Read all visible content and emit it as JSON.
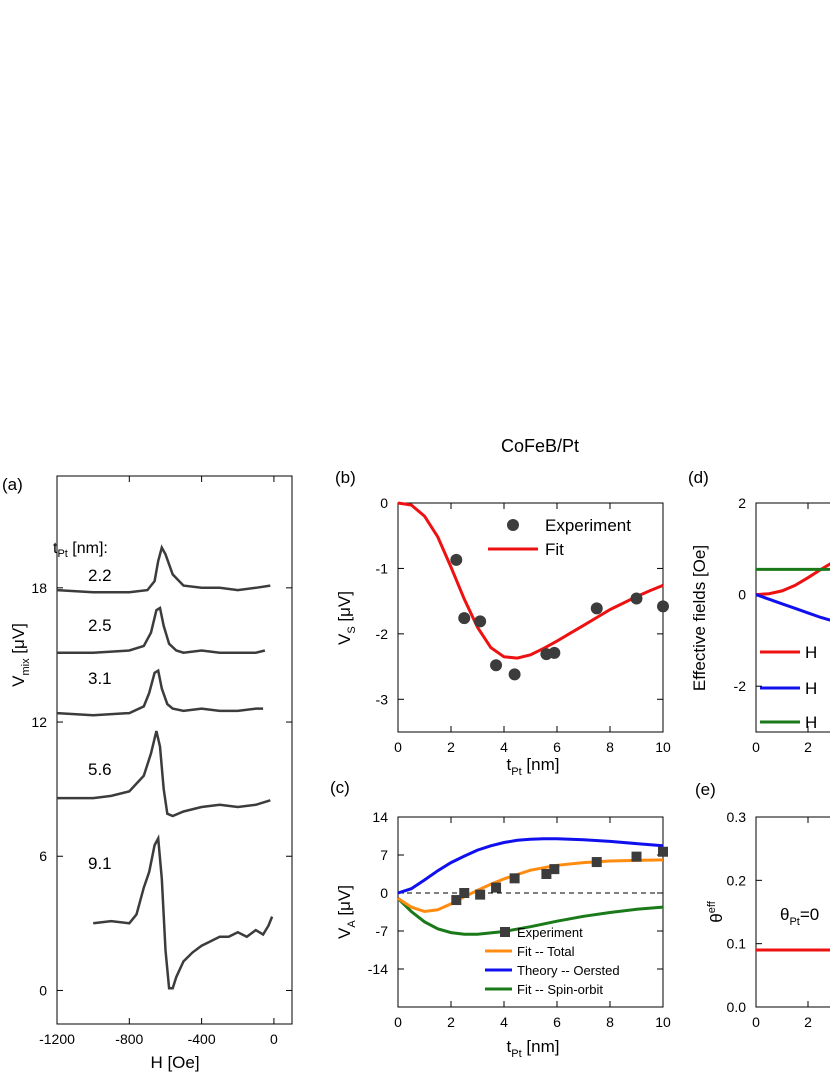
{
  "figure_title": "CoFeB/Pt",
  "colors": {
    "trace": "#3c3c3c",
    "fit_red": "#ee1111",
    "orange": "#ff8c10",
    "blue": "#1010ee",
    "green": "#1a7a1a",
    "marker": "#3c3c3c"
  },
  "panels": {
    "a": {
      "label": "(a)",
      "xlabel": "H [Oe]",
      "ylabel_main": "V",
      "ylabel_sub": "mix",
      "ylabel_unit": " [μV]",
      "legend_title_main": "t",
      "legend_title_sub": "Pt",
      "legend_title_rest": " [nm]:"
    },
    "b": {
      "label": "(b)",
      "xlabel_main": "t",
      "xlabel_sub": "Pt",
      "xlabel_unit": " [nm]",
      "ylabel_main": "V",
      "ylabel_sub": "S",
      "ylabel_unit": " [μV]",
      "legend": [
        "Experiment",
        "Fit"
      ]
    },
    "c": {
      "label": "(c)",
      "xlabel_main": "t",
      "xlabel_sub": "Pt",
      "xlabel_unit": " [nm]",
      "ylabel_main": "V",
      "ylabel_sub": "A",
      "ylabel_unit": " [μV]",
      "legend": [
        "Experiment",
        "Fit -- Total",
        "Theory -- Oersted",
        "Fit -- Spin-orbit"
      ]
    },
    "d": {
      "label": "(d)",
      "ylabel": "Effective fields [Oe]",
      "legend_visible": [
        "H",
        "H",
        "H"
      ]
    },
    "e": {
      "label": "(e)",
      "ylabel_main": "θ",
      "ylabel_sup": "eff",
      "annotation_main": "θ",
      "annotation_sub": "Pt",
      "annotation_rest": "=0"
    }
  },
  "chart_data": [
    {
      "id": "a",
      "type": "line",
      "title": "",
      "xlabel": "H [Oe]",
      "ylabel": "Vmix [μV]",
      "xlim": [
        -1200,
        100
      ],
      "ylim": [
        -1.5,
        23
      ],
      "xticks": [
        -1200,
        -800,
        -400,
        0
      ],
      "yticks": [
        0,
        6,
        12,
        18
      ],
      "series": [
        {
          "name": "2.2",
          "x": [
            -1200,
            -1000,
            -800,
            -700,
            -660,
            -640,
            -620,
            -600,
            -560,
            -500,
            -400,
            -300,
            -200,
            -100,
            -20
          ],
          "y": [
            17.9,
            17.8,
            17.8,
            17.9,
            18.3,
            19.2,
            19.8,
            19.5,
            18.6,
            18.1,
            18.0,
            18.0,
            17.9,
            18.0,
            18.1
          ]
        },
        {
          "name": "2.5",
          "x": [
            -1200,
            -1000,
            -800,
            -720,
            -680,
            -650,
            -630,
            -610,
            -580,
            -540,
            -500,
            -400,
            -300,
            -200,
            -100,
            -50
          ],
          "y": [
            15.1,
            15.1,
            15.2,
            15.4,
            16.0,
            17.0,
            17.1,
            16.3,
            15.5,
            15.2,
            15.1,
            15.2,
            15.1,
            15.1,
            15.1,
            15.2
          ]
        },
        {
          "name": "3.1",
          "x": [
            -1200,
            -1000,
            -800,
            -720,
            -690,
            -660,
            -640,
            -620,
            -590,
            -560,
            -500,
            -400,
            -300,
            -200,
            -100,
            -60
          ],
          "y": [
            12.4,
            12.3,
            12.4,
            12.7,
            13.3,
            14.2,
            14.3,
            13.5,
            12.8,
            12.6,
            12.5,
            12.6,
            12.5,
            12.5,
            12.6,
            12.6
          ]
        },
        {
          "name": "5.6",
          "x": [
            -1200,
            -1000,
            -900,
            -800,
            -720,
            -680,
            -650,
            -630,
            -610,
            -590,
            -560,
            -500,
            -400,
            -300,
            -200,
            -100,
            -20
          ],
          "y": [
            8.6,
            8.6,
            8.7,
            8.9,
            9.6,
            10.6,
            11.6,
            10.9,
            9.0,
            7.9,
            7.8,
            8.0,
            8.2,
            8.3,
            8.2,
            8.3,
            8.5
          ]
        },
        {
          "name": "9.1",
          "x": [
            -1000,
            -900,
            -800,
            -760,
            -720,
            -690,
            -660,
            -640,
            -620,
            -600,
            -580,
            -560,
            -540,
            -500,
            -450,
            -400,
            -350,
            -300,
            -250,
            -200,
            -150,
            -100,
            -60,
            -30,
            -10
          ],
          "y": [
            3.0,
            3.1,
            3.0,
            3.4,
            4.6,
            5.3,
            6.5,
            6.8,
            5.0,
            1.8,
            0.1,
            0.1,
            0.6,
            1.3,
            1.7,
            2.0,
            2.2,
            2.4,
            2.4,
            2.6,
            2.4,
            2.7,
            2.5,
            2.9,
            3.3
          ]
        }
      ]
    },
    {
      "id": "b",
      "type": "scatter",
      "title": "",
      "xlabel": "tPt [nm]",
      "ylabel": "VS [μV]",
      "xlim": [
        0,
        10
      ],
      "ylim": [
        -3.5,
        0
      ],
      "xticks": [
        0,
        2,
        4,
        6,
        8,
        10
      ],
      "yticks": [
        0,
        -1,
        -2,
        -3
      ],
      "series": [
        {
          "name": "Experiment",
          "x": [
            2.2,
            2.5,
            3.1,
            3.7,
            4.4,
            5.6,
            5.9,
            7.5,
            9.0,
            10.0
          ],
          "y": [
            -0.87,
            -1.76,
            -1.81,
            -2.48,
            -2.62,
            -2.31,
            -2.29,
            -1.61,
            -1.46,
            -1.58
          ]
        },
        {
          "name": "Fit",
          "x": [
            0,
            0.5,
            1,
            1.5,
            2,
            2.5,
            3,
            3.5,
            4,
            4.5,
            5,
            5.5,
            6,
            6.5,
            7,
            7.5,
            8,
            8.5,
            9,
            9.5,
            10
          ],
          "y": [
            0,
            -0.03,
            -0.2,
            -0.52,
            -0.98,
            -1.47,
            -1.9,
            -2.21,
            -2.35,
            -2.37,
            -2.32,
            -2.22,
            -2.11,
            -1.99,
            -1.87,
            -1.75,
            -1.63,
            -1.53,
            -1.43,
            -1.34,
            -1.26
          ]
        }
      ]
    },
    {
      "id": "c",
      "type": "line",
      "title": "",
      "xlabel": "tPt [nm]",
      "ylabel": "VA [μV]",
      "xlim": [
        0,
        10
      ],
      "ylim": [
        -21,
        14
      ],
      "xticks": [
        0,
        2,
        4,
        6,
        8,
        10
      ],
      "yticks": [
        14,
        7,
        0,
        -7,
        -14
      ],
      "series": [
        {
          "name": "Experiment",
          "mode": "markers",
          "x": [
            2.2,
            2.5,
            3.1,
            3.7,
            4.4,
            5.6,
            5.9,
            7.5,
            9.0,
            10.0
          ],
          "y": [
            -1.3,
            0.0,
            -0.3,
            1.0,
            2.7,
            3.5,
            4.4,
            5.7,
            6.7,
            7.6
          ]
        },
        {
          "name": "Fit -- Total",
          "x": [
            0,
            0.5,
            1,
            1.5,
            2,
            2.5,
            3,
            3.5,
            4,
            4.5,
            5,
            6,
            7,
            8,
            9,
            10
          ],
          "y": [
            -1,
            -2.6,
            -3.4,
            -3.1,
            -2.0,
            -0.7,
            0.5,
            1.6,
            2.6,
            3.4,
            4.2,
            5.1,
            5.6,
            5.9,
            6.0,
            6.1
          ]
        },
        {
          "name": "Theory -- Oersted",
          "x": [
            0,
            0.5,
            1,
            1.5,
            2,
            2.5,
            3,
            3.5,
            4,
            4.5,
            5,
            5.5,
            6,
            7,
            8,
            9,
            10
          ],
          "y": [
            0,
            0.8,
            2.4,
            4.1,
            5.6,
            6.8,
            7.9,
            8.7,
            9.3,
            9.7,
            9.9,
            10.0,
            10.0,
            9.8,
            9.5,
            9.1,
            8.7
          ]
        },
        {
          "name": "Fit -- Spin-orbit",
          "x": [
            0,
            0.5,
            1,
            1.5,
            2,
            2.5,
            3,
            4,
            5,
            6,
            7,
            8,
            9,
            10
          ],
          "y": [
            -1,
            -3.4,
            -5.3,
            -6.6,
            -7.3,
            -7.6,
            -7.6,
            -7.1,
            -6.2,
            -5.2,
            -4.3,
            -3.6,
            -3.0,
            -2.6
          ]
        }
      ]
    },
    {
      "id": "d",
      "type": "line",
      "title": "",
      "xlabel": "",
      "ylabel": "Effective fields [Oe]",
      "xlim": [
        0,
        10
      ],
      "ylim": [
        -3,
        2
      ],
      "xticks": [
        0,
        2
      ],
      "yticks": [
        2,
        0,
        -2
      ],
      "series": [
        {
          "name": "",
          "color": "red",
          "x": [
            0,
            0.5,
            1,
            1.5,
            2,
            2.5,
            3
          ],
          "y": [
            0,
            0.02,
            0.08,
            0.2,
            0.37,
            0.55,
            0.72
          ]
        },
        {
          "name": "",
          "color": "blue",
          "x": [
            0,
            0.5,
            1,
            1.5,
            2,
            2.5,
            3
          ],
          "y": [
            0,
            -0.1,
            -0.2,
            -0.3,
            -0.4,
            -0.5,
            -0.58
          ]
        },
        {
          "name": "",
          "color": "green",
          "x": [
            0,
            3
          ],
          "y": [
            0.55,
            0.55
          ]
        }
      ]
    },
    {
      "id": "e",
      "type": "line",
      "title": "",
      "xlabel": "",
      "ylabel": "θeff",
      "xlim": [
        0,
        10
      ],
      "ylim": [
        0,
        0.3
      ],
      "xticks": [
        0,
        2
      ],
      "yticks": [
        0.0,
        0.1,
        0.2,
        0.3
      ],
      "series": [
        {
          "name": "",
          "color": "red",
          "x": [
            0,
            3
          ],
          "y": [
            0.09,
            0.09
          ]
        }
      ]
    }
  ]
}
